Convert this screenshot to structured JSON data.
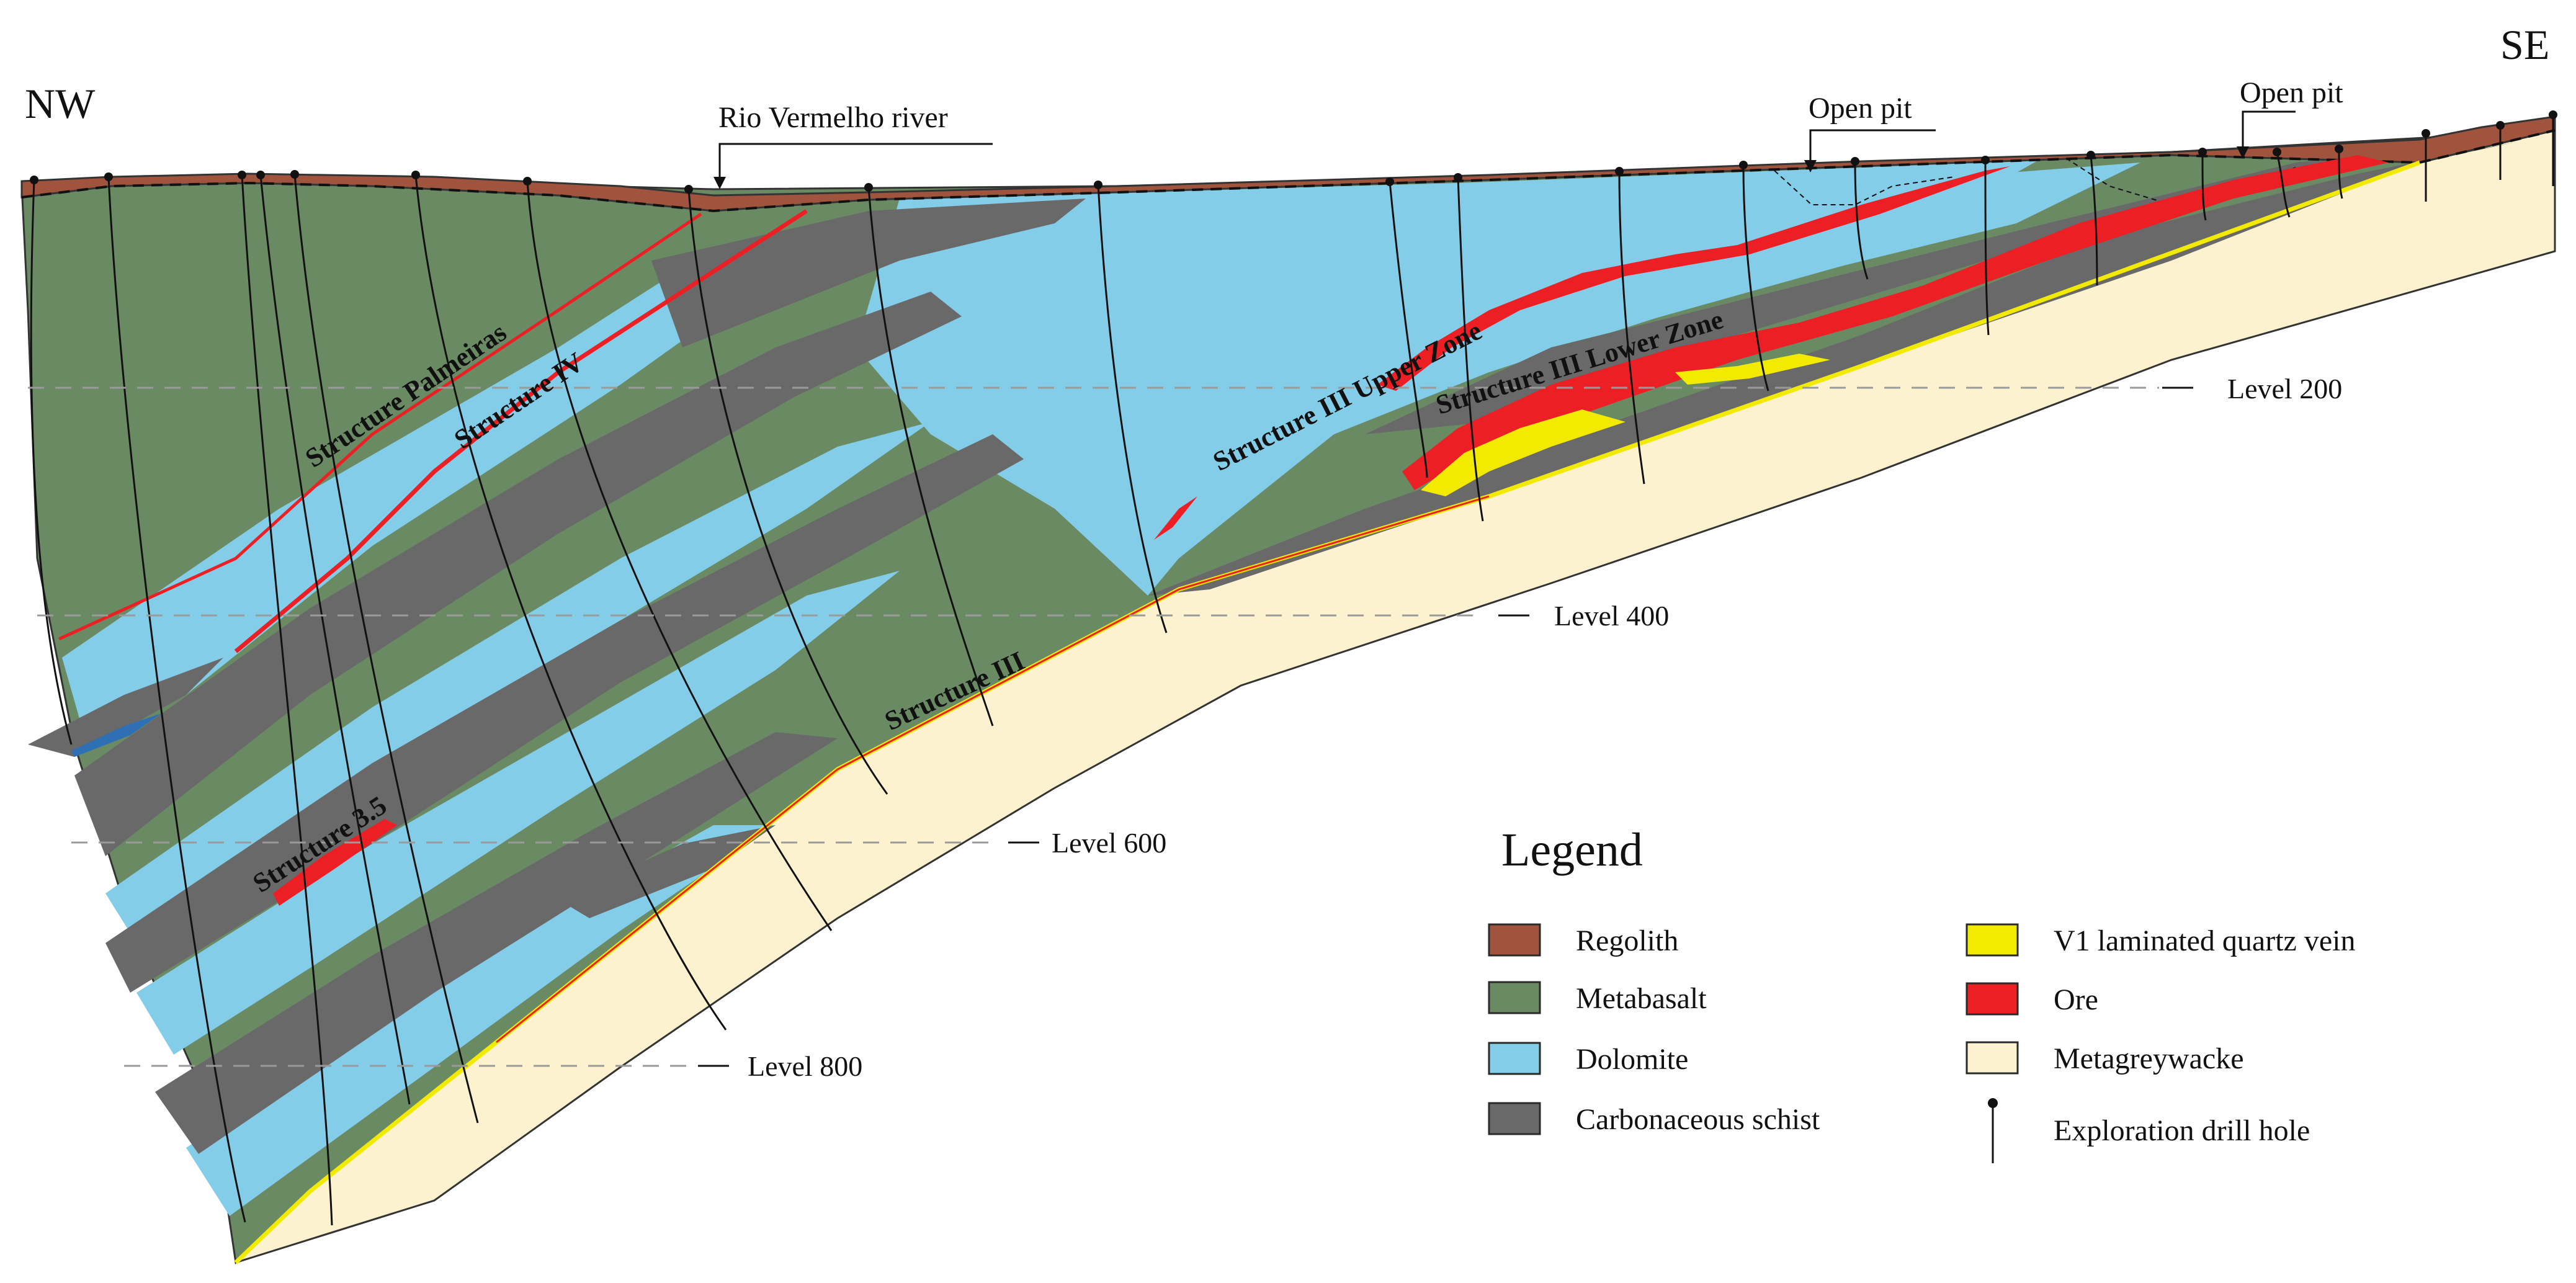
{
  "directions": {
    "left": "NW",
    "right": "SE"
  },
  "surface_labels": {
    "river": "Rio Vermelho river",
    "open_pit_1": "Open pit",
    "open_pit_2": "Open pit"
  },
  "levels": [
    "Level 200",
    "Level 400",
    "Level 600",
    "Level 800"
  ],
  "structures": {
    "palmeiras": "Structure Palmeiras",
    "iv": "Structure IV",
    "iii": "Structure III",
    "iii_upper": "Structure III Upper Zone",
    "iii_lower": "Structure III Lower Zone",
    "s35": "Structure 3.5"
  },
  "legend": {
    "title": "Legend",
    "items": [
      {
        "label": "Regolith",
        "color": "#a0533d"
      },
      {
        "label": "Metabasalt",
        "color": "#6a8a64"
      },
      {
        "label": "Dolomite",
        "color": "#84cde8"
      },
      {
        "label": "Carbonaceous schist",
        "color": "#696969"
      },
      {
        "label": "V1 laminated quartz vein",
        "color": "#f2ea00"
      },
      {
        "label": "Ore",
        "color": "#ec2024"
      },
      {
        "label": "Metagreywacke",
        "color": "#fdf2cf"
      },
      {
        "label": "Exploration drill hole",
        "color": "#111111"
      }
    ]
  }
}
